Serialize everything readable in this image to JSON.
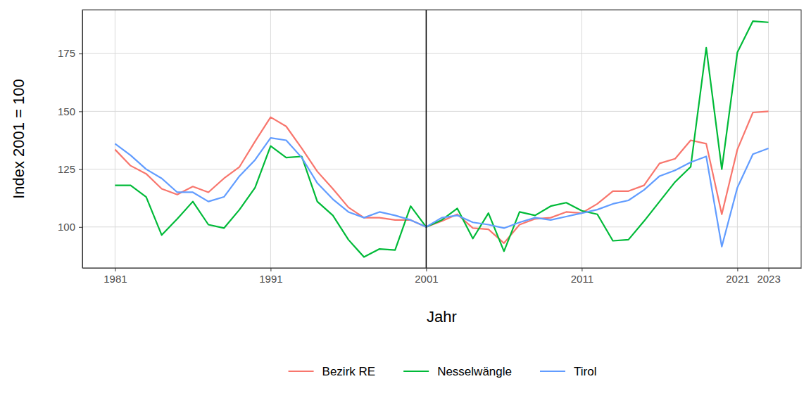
{
  "chart_data": {
    "type": "line",
    "x_label": "Jahr",
    "y_label": "Index 2001 = 100",
    "x": [
      1981,
      1982,
      1983,
      1984,
      1985,
      1986,
      1987,
      1988,
      1989,
      1990,
      1991,
      1992,
      1993,
      1994,
      1995,
      1996,
      1997,
      1998,
      1999,
      2000,
      2001,
      2002,
      2003,
      2004,
      2005,
      2006,
      2007,
      2008,
      2009,
      2010,
      2011,
      2012,
      2013,
      2014,
      2015,
      2016,
      2017,
      2018,
      2019,
      2020,
      2021,
      2022,
      2023
    ],
    "series": [
      {
        "name": "Bezirk RE",
        "color": "#F8766D",
        "values": [
          133.5,
          126.5,
          123,
          116.5,
          114,
          117.5,
          115,
          121,
          126,
          137,
          147.5,
          143.5,
          134,
          124,
          116.5,
          108.5,
          104,
          104,
          103,
          103,
          100,
          102.5,
          105.5,
          99.5,
          99,
          93,
          101,
          103.5,
          104,
          106.5,
          106,
          110,
          115.5,
          115.5,
          118,
          127.5,
          129.5,
          137.5,
          136,
          105.5,
          133.5,
          149.5,
          150
        ]
      },
      {
        "name": "Nesselwängle",
        "color": "#00BA38",
        "values": [
          118,
          118,
          113,
          96.5,
          103.5,
          111,
          101,
          99.5,
          107.5,
          117,
          135,
          130,
          130.5,
          111,
          105,
          94.5,
          87,
          90.5,
          90,
          109,
          100,
          103,
          108,
          95,
          106,
          89.5,
          106.5,
          105,
          109,
          110.5,
          107,
          105.5,
          94,
          94.5,
          102.5,
          111,
          119.5,
          126,
          177.5,
          125,
          175.5,
          189,
          188.5
        ]
      },
      {
        "name": "Tirol",
        "color": "#619CFF",
        "values": [
          136,
          131,
          125,
          121,
          115,
          115,
          111,
          113,
          122,
          129,
          138.5,
          137.5,
          130,
          119,
          112,
          106.5,
          104,
          106.5,
          105,
          103,
          100,
          104,
          105,
          102,
          101,
          99.5,
          102,
          104,
          103,
          104.5,
          106,
          107.5,
          110,
          111.5,
          116,
          122,
          124.5,
          128,
          130.5,
          91.5,
          117,
          131.5,
          134
        ]
      }
    ],
    "xlim": [
      1978.9,
      2025.1
    ],
    "xticks": [
      1981,
      1991,
      2001,
      2011,
      2021,
      2023
    ],
    "ylim": [
      82.3,
      193.9
    ],
    "yticks": [
      100,
      125,
      150,
      175
    ],
    "vline": 2001,
    "grid": true,
    "legend": "bottom"
  }
}
